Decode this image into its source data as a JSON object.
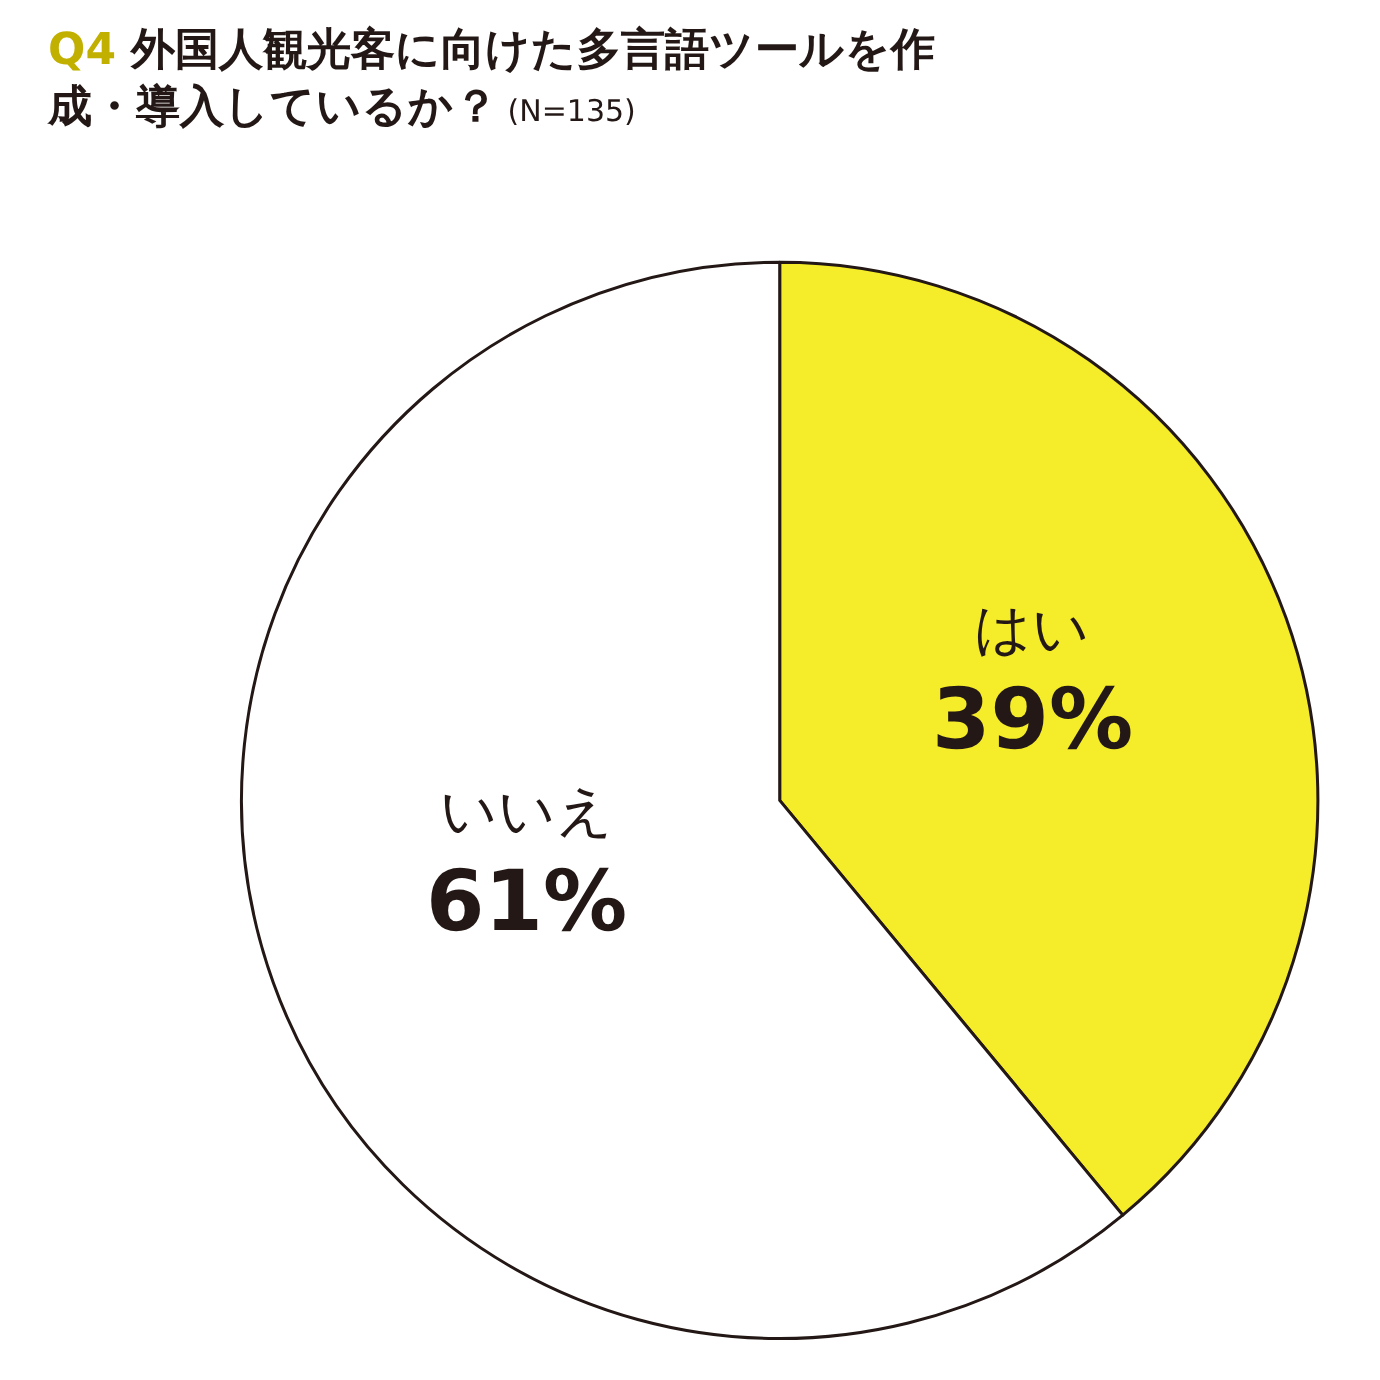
{
  "chart_data": {
    "type": "pie",
    "title": "Q4 外国人観光客に向けた多言語ツールを作成・導入しているか？ (N=135)",
    "categories": [
      "はい",
      "いいえ"
    ],
    "values": [
      39,
      61
    ],
    "value_labels": [
      "39%",
      "61%"
    ],
    "colors": [
      "#f5ec2a",
      "#ffffff"
    ],
    "legend": false
  }
}
